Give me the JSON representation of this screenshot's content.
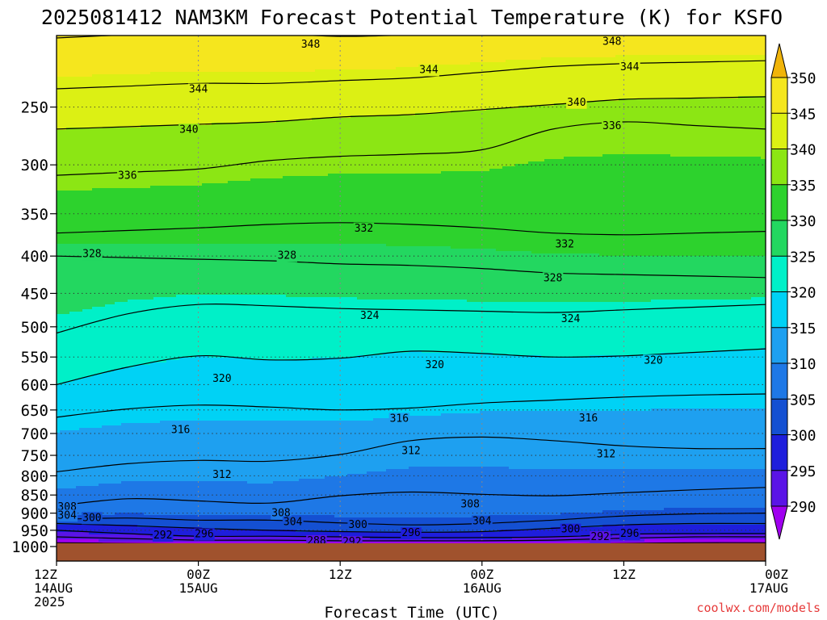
{
  "chart_data": {
    "type": "filled-contour",
    "title": "2025081412 NAM3KM Forecast Potential Temperature (K) for KSFO",
    "xlabel": "Forecast Time (UTC)",
    "credit": "coolwx.com/models",
    "y_axis": {
      "label": "",
      "scale": "pressure-inverted",
      "range_hPa": [
        1000,
        200
      ],
      "ticks": [
        250,
        300,
        350,
        400,
        450,
        500,
        550,
        600,
        650,
        700,
        750,
        800,
        850,
        900,
        950,
        1000
      ]
    },
    "x_axis": {
      "range_hours": [
        0,
        60
      ],
      "ticks": [
        {
          "hour": 0,
          "lines": [
            "12Z",
            "14AUG",
            "2025"
          ]
        },
        {
          "hour": 12,
          "lines": [
            "00Z",
            "15AUG"
          ]
        },
        {
          "hour": 24,
          "lines": [
            "12Z"
          ]
        },
        {
          "hour": 36,
          "lines": [
            "00Z",
            "16AUG"
          ]
        },
        {
          "hour": 48,
          "lines": [
            "12Z"
          ]
        },
        {
          "hour": 60,
          "lines": [
            "00Z",
            "17AUG"
          ]
        }
      ]
    },
    "colorbar": {
      "levels": [
        290,
        295,
        300,
        305,
        310,
        315,
        320,
        325,
        330,
        335,
        340,
        345,
        350
      ],
      "colors": [
        "#a000f0",
        "#5a14e6",
        "#1e1edc",
        "#1450d2",
        "#1e78e6",
        "#1ea0f0",
        "#00d2f5",
        "#00f0c8",
        "#23d760",
        "#2dd22d",
        "#8ce614",
        "#dcf014",
        "#f5e61e",
        "#f0b40a"
      ],
      "extend": "both"
    },
    "isotherms_K": [
      {
        "theta": 348,
        "p": [
          201,
          199,
          197,
          198,
          200,
          199,
          197,
          196,
          197,
          198,
          199
        ]
      },
      {
        "theta": 344,
        "p": [
          236,
          234,
          232,
          232,
          230,
          228,
          224,
          220,
          218,
          217,
          216
        ]
      },
      {
        "theta": 340,
        "p": [
          268,
          266,
          264,
          262,
          258,
          256,
          252,
          248,
          244,
          243,
          242
        ]
      },
      {
        "theta": 336,
        "p": [
          310,
          307,
          304,
          296,
          292,
          290,
          286,
          268,
          262,
          265,
          268
        ]
      },
      {
        "theta": 332,
        "p": [
          372,
          369,
          366,
          362,
          360,
          362,
          366,
          372,
          374,
          372,
          370
        ]
      },
      {
        "theta": 328,
        "p": [
          400,
          402,
          404,
          406,
          410,
          412,
          416,
          422,
          424,
          426,
          428
        ]
      },
      {
        "theta": 324,
        "p": [
          510,
          480,
          466,
          468,
          472,
          474,
          476,
          478,
          474,
          470,
          466
        ]
      },
      {
        "theta": 320,
        "p": [
          600,
          568,
          548,
          555,
          552,
          540,
          544,
          550,
          548,
          542,
          536
        ]
      },
      {
        "theta": 316,
        "p": [
          665,
          648,
          640,
          644,
          650,
          646,
          636,
          630,
          624,
          620,
          618
        ]
      },
      {
        "theta": 312,
        "p": [
          790,
          770,
          762,
          764,
          748,
          716,
          708,
          716,
          728,
          734,
          734
        ]
      },
      {
        "theta": 308,
        "p": [
          880,
          860,
          866,
          872,
          852,
          842,
          848,
          852,
          844,
          836,
          830
        ]
      },
      {
        "theta": 304,
        "p": [
          918,
          914,
          920,
          920,
          928,
          934,
          930,
          920,
          908,
          902,
          900
        ]
      },
      {
        "theta": 300,
        "p": [
          930,
          936,
          944,
          950,
          954,
          956,
          954,
          944,
          934,
          930,
          930
        ]
      },
      {
        "theta": 296,
        "p": [
          950,
          960,
          968,
          968,
          970,
          972,
          972,
          970,
          962,
          960,
          960
        ]
      },
      {
        "theta": 292,
        "p": [
          970,
          975,
          980,
          980,
          982,
          982,
          982,
          980,
          974,
          970,
          970
        ]
      },
      {
        "theta": 288,
        "p": [
          988,
          990,
          992,
          994,
          994,
          994,
          994,
          992,
          990,
          988,
          988
        ]
      }
    ],
    "contour_labels": [
      {
        "text": "348",
        "hour": 21.5,
        "p": 205
      },
      {
        "text": "348",
        "hour": 47.0,
        "p": 203
      },
      {
        "text": "344",
        "hour": 12.0,
        "p": 236
      },
      {
        "text": "344",
        "hour": 31.5,
        "p": 222
      },
      {
        "text": "344",
        "hour": 48.5,
        "p": 220
      },
      {
        "text": "340",
        "hour": 11.2,
        "p": 268
      },
      {
        "text": "340",
        "hour": 44.0,
        "p": 246
      },
      {
        "text": "336",
        "hour": 6.0,
        "p": 310
      },
      {
        "text": "336",
        "hour": 47.0,
        "p": 265
      },
      {
        "text": "332",
        "hour": 26.0,
        "p": 366
      },
      {
        "text": "332",
        "hour": 43.0,
        "p": 385
      },
      {
        "text": "328",
        "hour": 3.0,
        "p": 397
      },
      {
        "text": "328",
        "hour": 19.5,
        "p": 399
      },
      {
        "text": "328",
        "hour": 42.0,
        "p": 428
      },
      {
        "text": "324",
        "hour": 26.5,
        "p": 482
      },
      {
        "text": "324",
        "hour": 43.5,
        "p": 487
      },
      {
        "text": "320",
        "hour": 14.0,
        "p": 588
      },
      {
        "text": "320",
        "hour": 32.0,
        "p": 563
      },
      {
        "text": "320",
        "hour": 50.5,
        "p": 555
      },
      {
        "text": "316",
        "hour": 10.5,
        "p": 691
      },
      {
        "text": "316",
        "hour": 29.0,
        "p": 667
      },
      {
        "text": "316",
        "hour": 45.0,
        "p": 666
      },
      {
        "text": "312",
        "hour": 14.0,
        "p": 796
      },
      {
        "text": "312",
        "hour": 30.0,
        "p": 739
      },
      {
        "text": "312",
        "hour": 46.5,
        "p": 746
      },
      {
        "text": "308",
        "hour": 0.9,
        "p": 882
      },
      {
        "text": "308",
        "hour": 19.0,
        "p": 899
      },
      {
        "text": "308",
        "hour": 35.0,
        "p": 874
      },
      {
        "text": "304",
        "hour": 0.9,
        "p": 905
      },
      {
        "text": "304",
        "hour": 20.0,
        "p": 924
      },
      {
        "text": "304",
        "hour": 36.0,
        "p": 922
      },
      {
        "text": "300",
        "hour": 3.0,
        "p": 912
      },
      {
        "text": "300",
        "hour": 25.5,
        "p": 932
      },
      {
        "text": "300",
        "hour": 43.5,
        "p": 946
      },
      {
        "text": "296",
        "hour": 12.5,
        "p": 960
      },
      {
        "text": "296",
        "hour": 30.0,
        "p": 957
      },
      {
        "text": "296",
        "hour": 48.5,
        "p": 959
      },
      {
        "text": "292",
        "hour": 9.0,
        "p": 964
      },
      {
        "text": "292",
        "hour": 25.0,
        "p": 984
      },
      {
        "text": "292",
        "hour": 46.0,
        "p": 969
      },
      {
        "text": "288",
        "hour": 22.0,
        "p": 981
      }
    ],
    "grid": true,
    "terrain_below_hPa": 1010
  }
}
